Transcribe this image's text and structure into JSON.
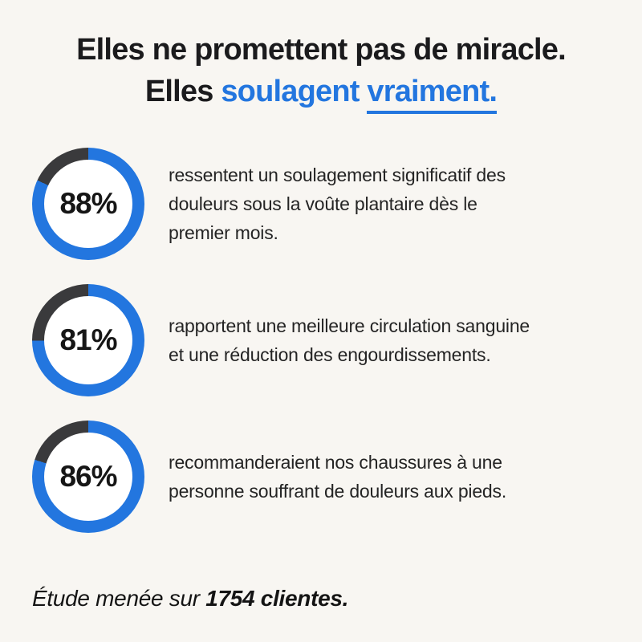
{
  "page": {
    "background": "#f8f6f2",
    "accent_blue": "#2376df",
    "ring_blue": "#2376df",
    "ring_dark": "#3a3a3c",
    "inner_circle": "#ffffff"
  },
  "title": {
    "line1": "Elles ne promettent pas de miracle.",
    "line2_prefix": "Elles",
    "line2_highlight": " soulagent ",
    "line2_underlined": "vraiment."
  },
  "chart_data": {
    "type": "pie",
    "subtype": "donut-progress-rings",
    "title": "Elles ne promettent pas de miracle. Elles soulagent vraiment.",
    "unit": "%",
    "categories": [
      "ressentent un soulagement significatif des douleurs sous la voûte plantaire dès le premier mois.",
      "rapportent une meilleure circulation sanguine et une réduction des engourdissements.",
      "recommanderaient nos chaussures à une personne souffrant de douleurs aux pieds."
    ],
    "values": [
      88,
      81,
      86
    ],
    "colors": {
      "filled": "#2376df",
      "remainder": "#3a3a3c"
    },
    "legend": "none",
    "source_note": "Étude menée sur 1754 clientes."
  },
  "stats": [
    {
      "value": 88,
      "percent_label": "88%",
      "lines": [
        "ressentent un soulagement significatif des",
        "douleurs sous la voûte plantaire dès le",
        "premier mois."
      ]
    },
    {
      "value": 81,
      "percent_label": "81%",
      "lines": [
        "rapportent une meilleure circulation sanguine",
        "et une réduction des engourdissements.",
        ""
      ]
    },
    {
      "value": 86,
      "percent_label": "86%",
      "lines": [
        "recommanderaient nos chaussures à une",
        "personne souffrant de douleurs aux pieds.",
        ""
      ]
    }
  ],
  "footer": {
    "prefix": "Étude menée sur ",
    "bold": "1754 clientes."
  }
}
